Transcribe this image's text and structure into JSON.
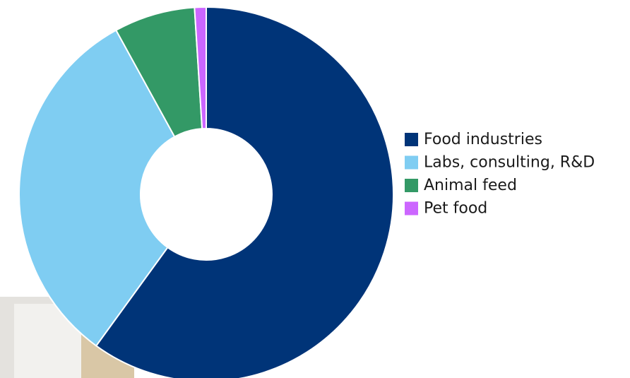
{
  "chart_data": {
    "type": "donut",
    "categories": [
      "Food industries",
      "Labs, consulting, R&D",
      "Animal feed",
      "Pet food"
    ],
    "values": [
      60,
      32,
      7,
      1
    ],
    "colors": [
      "#003478",
      "#7fcdf2",
      "#339966",
      "#cc66ff"
    ],
    "legend": "right"
  }
}
